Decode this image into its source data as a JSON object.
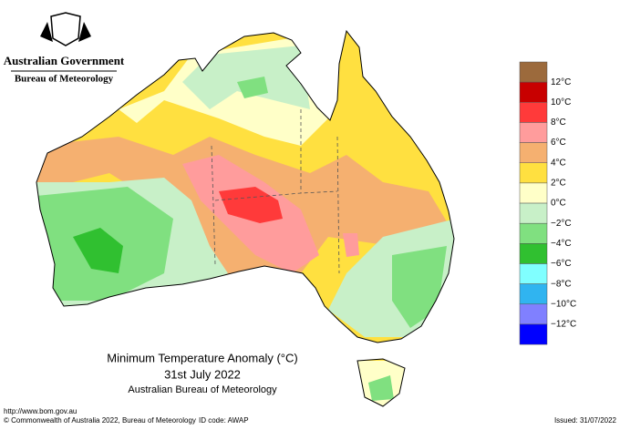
{
  "header": {
    "government": "Australian Government",
    "agency": "Bureau of Meteorology"
  },
  "legend": {
    "colors": [
      "#9c6a3c",
      "#c80000",
      "#ff3a3a",
      "#ff9c9c",
      "#f5b070",
      "#ffe040",
      "#ffffc8",
      "#c8f0c8",
      "#80e080",
      "#30c030",
      "#80ffff",
      "#30b4f0",
      "#8080ff",
      "#0000ff"
    ],
    "labels": [
      "12°C",
      "10°C",
      "8°C",
      "6°C",
      "4°C",
      "2°C",
      "0°C",
      "−2°C",
      "−4°C",
      "−6°C",
      "−8°C",
      "−10°C",
      "−12°C"
    ]
  },
  "caption": {
    "title": "Minimum Temperature Anomaly (°C)",
    "date": "31st July 2022",
    "source": "Australian Bureau of Meteorology"
  },
  "footer": {
    "url": "http://www.bom.gov.au",
    "copyright": "© Commonwealth of Australia 2022, Bureau of Meteorology",
    "id_code": "ID code: AWAP",
    "issued": "Issued: 31/07/2022"
  }
}
